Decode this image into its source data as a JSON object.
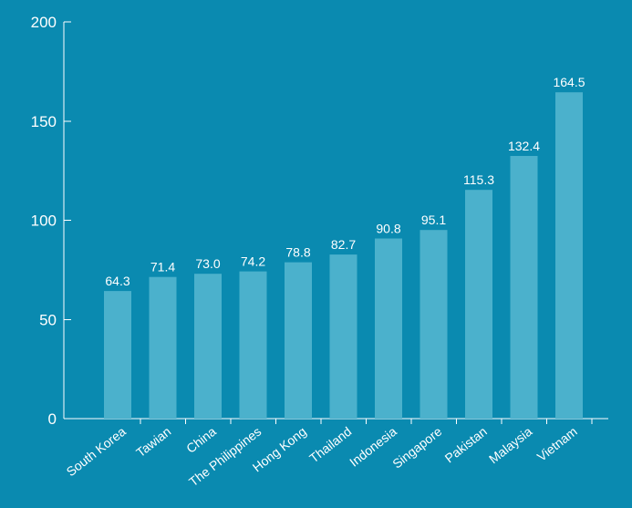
{
  "chart_data": {
    "type": "bar",
    "categories": [
      "South Korea",
      "Tawian",
      "China",
      "The Philippines",
      "Hong Kong",
      "Thailand",
      "Indonesia",
      "Singapore",
      "Pakistan",
      "Malaysia",
      "Vietnam"
    ],
    "values": [
      64.3,
      71.4,
      73.0,
      74.2,
      78.8,
      82.7,
      90.8,
      95.1,
      115.3,
      132.4,
      164.5
    ],
    "value_labels": [
      "64.3",
      "71.4",
      "73.0",
      "74.2",
      "78.8",
      "82.7",
      "90.8",
      "95.1",
      "115.3",
      "132.4",
      "164.5"
    ],
    "title": "",
    "xlabel": "",
    "ylabel": "",
    "ylim": [
      0,
      200
    ],
    "yticks": [
      "0",
      "50",
      "100",
      "150",
      "200"
    ],
    "grid": false,
    "legend": "none"
  },
  "colors": {
    "background": "#0a8ab0",
    "bar": "#4bb1cc",
    "text": "#ffffff",
    "axis": "#ffffff"
  }
}
